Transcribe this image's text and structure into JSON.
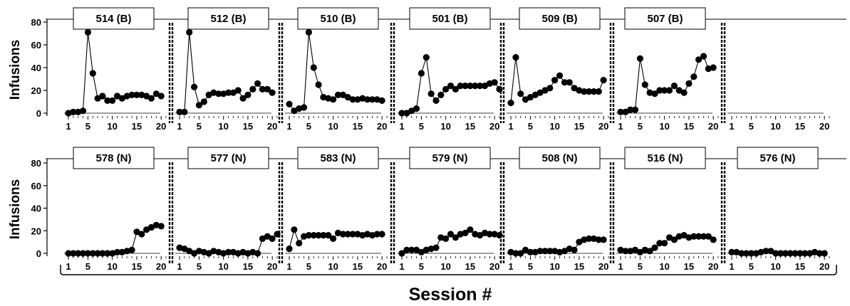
{
  "figure": {
    "xlabel": "Session #"
  },
  "chart_data": [
    {
      "type": "line",
      "row": "top",
      "ylabel": "Infusions",
      "ylim": [
        0,
        80
      ],
      "yticks": [
        0,
        20,
        40,
        60,
        80
      ],
      "xticks": [
        1,
        5,
        10,
        15,
        20
      ],
      "panels": [
        {
          "title": "514 (B)",
          "x": [
            1,
            2,
            3,
            4,
            5,
            6,
            7,
            8,
            9,
            10,
            11,
            12,
            13,
            14,
            15,
            16,
            17,
            18,
            19,
            20
          ],
          "values": [
            0,
            1,
            1,
            2,
            71,
            35,
            13,
            15,
            11,
            11,
            15,
            13,
            15,
            16,
            16,
            16,
            15,
            13,
            17,
            15
          ]
        },
        {
          "title": "512 (B)",
          "x": [
            1,
            2,
            3,
            4,
            5,
            6,
            7,
            8,
            9,
            10,
            11,
            12,
            13,
            14,
            15,
            16,
            17,
            18,
            19,
            20
          ],
          "values": [
            1,
            1,
            71,
            23,
            7,
            10,
            16,
            18,
            17,
            17,
            18,
            18,
            20,
            13,
            16,
            21,
            26,
            21,
            21,
            18
          ]
        },
        {
          "title": "510 (B)",
          "x": [
            1,
            2,
            3,
            4,
            5,
            6,
            7,
            8,
            9,
            10,
            11,
            12,
            13,
            14,
            15,
            16,
            17,
            18,
            19,
            20
          ],
          "values": [
            8,
            2,
            4,
            5,
            71,
            40,
            25,
            14,
            13,
            12,
            16,
            16,
            14,
            12,
            12,
            13,
            12,
            12,
            12,
            11
          ]
        },
        {
          "title": "501 (B)",
          "x": [
            1,
            2,
            3,
            4,
            5,
            6,
            7,
            8,
            9,
            10,
            11,
            12,
            13,
            14,
            15,
            16,
            17,
            18,
            19,
            20,
            21
          ],
          "values": [
            0,
            0,
            2,
            4,
            35,
            49,
            17,
            11,
            16,
            21,
            24,
            21,
            24,
            24,
            24,
            24,
            24,
            24,
            26,
            27,
            21
          ]
        },
        {
          "title": "509 (B)",
          "x": [
            1,
            2,
            3,
            4,
            5,
            6,
            7,
            8,
            9,
            10,
            11,
            12,
            13,
            14,
            15,
            16,
            17,
            18,
            19,
            20
          ],
          "values": [
            9,
            49,
            17,
            12,
            14,
            16,
            18,
            20,
            22,
            29,
            33,
            27,
            27,
            22,
            20,
            19,
            19,
            19,
            19,
            29
          ]
        },
        {
          "title": "507 (B)",
          "x": [
            1,
            2,
            3,
            4,
            5,
            6,
            7,
            8,
            9,
            10,
            11,
            12,
            13,
            14,
            15,
            16,
            17,
            18,
            19,
            20
          ],
          "values": [
            1,
            1,
            3,
            3,
            48,
            25,
            18,
            17,
            20,
            20,
            20,
            24,
            20,
            18,
            26,
            32,
            47,
            50,
            39,
            40
          ]
        },
        {
          "title": "",
          "x": [],
          "values": []
        }
      ]
    },
    {
      "type": "line",
      "row": "bottom",
      "ylabel": "Infusions",
      "ylim": [
        0,
        80
      ],
      "yticks": [
        0,
        20,
        40,
        60,
        80
      ],
      "xticks": [
        1,
        5,
        10,
        15,
        20
      ],
      "panels": [
        {
          "title": "578 (N)",
          "x": [
            1,
            2,
            3,
            4,
            5,
            6,
            7,
            8,
            9,
            10,
            11,
            12,
            13,
            14,
            15,
            16,
            17,
            18,
            19,
            20
          ],
          "values": [
            0,
            0,
            0,
            0,
            0,
            0,
            0,
            0,
            0,
            0,
            1,
            1,
            2,
            3,
            19,
            17,
            21,
            23,
            25,
            24
          ]
        },
        {
          "title": "577 (N)",
          "x": [
            1,
            2,
            3,
            4,
            5,
            6,
            7,
            8,
            9,
            10,
            11,
            12,
            13,
            14,
            15,
            16,
            17,
            18,
            19,
            20,
            21
          ],
          "values": [
            5,
            4,
            2,
            0,
            2,
            1,
            0,
            2,
            1,
            0,
            1,
            1,
            0,
            1,
            0,
            1,
            0,
            13,
            15,
            13,
            17
          ]
        },
        {
          "title": "583 (N)",
          "x": [
            1,
            2,
            3,
            4,
            5,
            6,
            7,
            8,
            9,
            10,
            11,
            12,
            13,
            14,
            15,
            16,
            17,
            18,
            19,
            20
          ],
          "values": [
            4,
            21,
            9,
            15,
            16,
            16,
            16,
            16,
            16,
            13,
            18,
            17,
            17,
            17,
            17,
            16,
            17,
            16,
            17,
            17
          ]
        },
        {
          "title": "579 (N)",
          "x": [
            1,
            2,
            3,
            4,
            5,
            6,
            7,
            8,
            9,
            10,
            11,
            12,
            13,
            14,
            15,
            16,
            17,
            18,
            19,
            20,
            21
          ],
          "values": [
            0,
            3,
            3,
            3,
            1,
            3,
            4,
            5,
            14,
            13,
            17,
            14,
            17,
            18,
            21,
            17,
            16,
            18,
            17,
            17,
            16
          ]
        },
        {
          "title": "508 (N)",
          "x": [
            1,
            2,
            3,
            4,
            5,
            6,
            7,
            8,
            9,
            10,
            11,
            12,
            13,
            14,
            15,
            16,
            17,
            18,
            19,
            20
          ],
          "values": [
            1,
            0,
            0,
            3,
            1,
            1,
            2,
            2,
            2,
            2,
            1,
            2,
            4,
            3,
            10,
            12,
            13,
            13,
            12,
            12
          ]
        },
        {
          "title": "516 (N)",
          "x": [
            1,
            2,
            3,
            4,
            5,
            6,
            7,
            8,
            9,
            10,
            11,
            12,
            13,
            14,
            15,
            16,
            17,
            18,
            19,
            20
          ],
          "values": [
            3,
            2,
            2,
            3,
            1,
            3,
            2,
            5,
            9,
            9,
            14,
            12,
            15,
            16,
            14,
            15,
            15,
            15,
            15,
            12
          ]
        },
        {
          "title": "576 (N)",
          "x": [
            1,
            2,
            3,
            4,
            5,
            6,
            7,
            8,
            9,
            10,
            11,
            12,
            13,
            14,
            15,
            16,
            17,
            18,
            19,
            20
          ],
          "values": [
            1,
            1,
            0,
            0,
            0,
            0,
            1,
            2,
            2,
            0,
            0,
            0,
            0,
            0,
            0,
            0,
            0,
            1,
            0,
            0
          ]
        }
      ]
    }
  ]
}
